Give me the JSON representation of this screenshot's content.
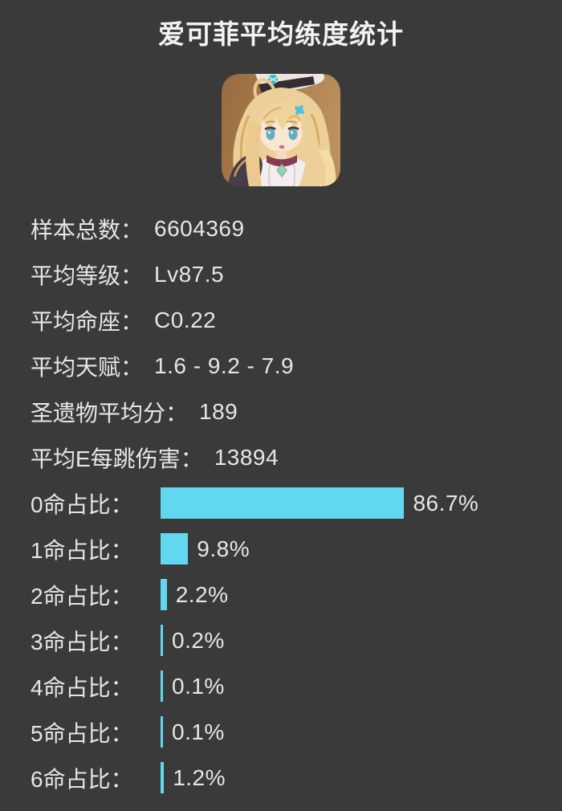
{
  "page": {
    "background": "#3a3a3a",
    "text_color": "#e6e6e6",
    "accent_bar_color": "#62d8f0"
  },
  "title": "爱可菲平均练度统计",
  "colon": "：",
  "avatar": {
    "description": "escoffier-character-portrait"
  },
  "stats": [
    {
      "label": "样本总数",
      "value": "6604369"
    },
    {
      "label": "平均等级",
      "value": "Lv87.5"
    },
    {
      "label": "平均命座",
      "value": "C0.22"
    },
    {
      "label": "平均天赋",
      "value": "1.6 - 9.2 - 7.9"
    },
    {
      "label": "圣遗物平均分",
      "value": "189"
    },
    {
      "label": "平均E每跳伤害",
      "value": "13894"
    }
  ],
  "chart_data": {
    "type": "bar",
    "orientation": "horizontal",
    "categories": [
      "0命占比",
      "1命占比",
      "2命占比",
      "3命占比",
      "4命占比",
      "5命占比",
      "6命占比"
    ],
    "values": [
      86.7,
      9.8,
      2.2,
      0.2,
      0.1,
      0.1,
      1.2
    ],
    "value_labels": [
      "86.7%",
      "9.8%",
      "2.2%",
      "0.2%",
      "0.1%",
      "0.1%",
      "1.2%"
    ],
    "unit": "%",
    "xlim": [
      0,
      100
    ],
    "bar_color": "#62d8f0",
    "grid": false,
    "legend": false
  }
}
